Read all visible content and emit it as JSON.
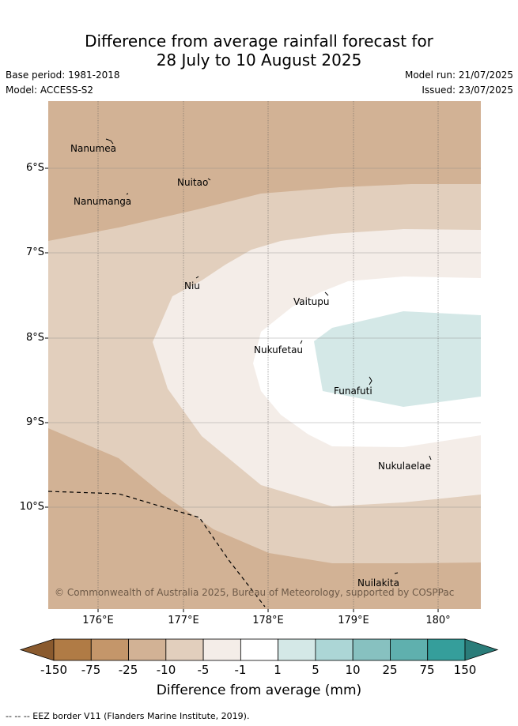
{
  "title": {
    "line1": "Difference from average rainfall forecast for",
    "line2": "28 July to 10 August 2025"
  },
  "meta": {
    "base_period": "Base period: 1981-2018",
    "model": "Model: ACCESS-S2",
    "model_run": "Model run: 21/07/2025",
    "issued": "Issued: 23/07/2025"
  },
  "map": {
    "latitude_labels": [
      "6°S",
      "7°S",
      "8°S",
      "9°S",
      "10°S"
    ],
    "longitude_labels": [
      "176°E",
      "177°E",
      "178°E",
      "179°E",
      "180°"
    ],
    "places": [
      "Nanumea",
      "Nuitao",
      "Nanumanga",
      "Niu",
      "Vaitupu",
      "Nukufetau",
      "Funafuti",
      "Nukulaelae",
      "Nuilakita"
    ],
    "copyright": "© Commonwealth of Australia 2025, Bureau of Meteorology, supported by COSPPac"
  },
  "colorbar": {
    "labels": [
      "-150",
      "-75",
      "-25",
      "-10",
      "-5",
      "-1",
      "1",
      "5",
      "10",
      "25",
      "75",
      "150"
    ],
    "colors": [
      "#8a5a2e",
      "#b07b45",
      "#c4966a",
      "#d2b295",
      "#e2cfbd",
      "#f4ede8",
      "#ffffff",
      "#d4e8e7",
      "#acd6d6",
      "#87c1c0",
      "#5fb0ae",
      "#359e9b",
      "#2a7c79"
    ],
    "title": "Difference from average (mm)"
  },
  "footer": "-- -- -- EEZ border V11 (Flanders Marine Institute, 2019)."
}
